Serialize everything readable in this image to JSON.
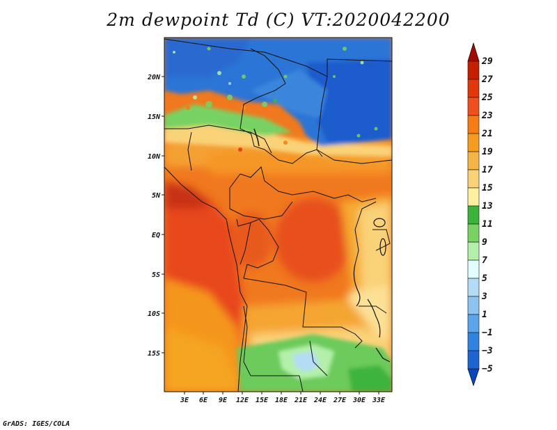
{
  "title": "2m dewpoint Td (C) VT:2020042200",
  "footer": "GrADS: IGES/COLA",
  "map": {
    "variable": "2m dewpoint",
    "units": "C",
    "valid_time": "2020042200",
    "lat_labels": [
      "20N",
      "15N",
      "10N",
      "5N",
      "EQ",
      "5S",
      "10S",
      "15S"
    ],
    "lon_labels": [
      "3E",
      "6E",
      "9E",
      "12E",
      "15E",
      "18E",
      "21E",
      "24E",
      "27E",
      "30E",
      "33E"
    ]
  },
  "colorbar": {
    "labels": [
      "29",
      "27",
      "25",
      "23",
      "21",
      "19",
      "17",
      "15",
      "13",
      "11",
      "9",
      "7",
      "5",
      "3",
      "1",
      "−1",
      "−3",
      "−5"
    ],
    "colors": [
      "#a50a00",
      "#c81e00",
      "#e1370a",
      "#f0501e",
      "#f57d14",
      "#f59b1e",
      "#f5b446",
      "#fad278",
      "#fff0a0",
      "#3cb43c",
      "#78d264",
      "#b4f0aa",
      "#e1ffff",
      "#b4dcf5",
      "#8cc3f0",
      "#5aa5eb",
      "#3282e1",
      "#1e64d2",
      "#0a46be"
    ]
  }
}
